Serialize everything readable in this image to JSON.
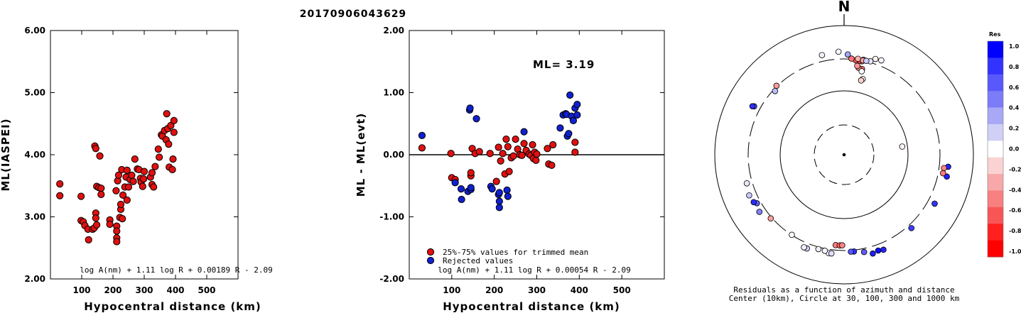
{
  "title": "20170906043629",
  "chart_data": [
    {
      "type": "scatter",
      "xlabel": "Hypocentral distance (km)",
      "ylabel": "ML(IASPEI)",
      "xlim": [
        0,
        600
      ],
      "ylim": [
        2.0,
        6.0
      ],
      "xticks": [
        "100",
        "200",
        "300",
        "400",
        "500"
      ],
      "yticks": [
        "2.00",
        "3.00",
        "4.00",
        "5.00",
        "6.00"
      ],
      "formula": "log A(nm) + 1.11 log R + 0.00189 R - 2.09",
      "color": "#e01010",
      "points": [
        [
          30,
          3.53
        ],
        [
          30,
          3.34
        ],
        [
          98,
          3.33
        ],
        [
          98,
          2.94
        ],
        [
          105,
          2.92
        ],
        [
          110,
          2.86
        ],
        [
          120,
          2.8
        ],
        [
          122,
          2.63
        ],
        [
          135,
          2.8
        ],
        [
          140,
          2.82
        ],
        [
          142,
          4.14
        ],
        [
          145,
          4.1
        ],
        [
          145,
          3.06
        ],
        [
          145,
          2.98
        ],
        [
          148,
          2.87
        ],
        [
          148,
          3.49
        ],
        [
          155,
          3.47
        ],
        [
          158,
          3.98
        ],
        [
          162,
          3.46
        ],
        [
          162,
          3.36
        ],
        [
          190,
          2.95
        ],
        [
          190,
          2.88
        ],
        [
          210,
          3.42
        ],
        [
          212,
          2.85
        ],
        [
          212,
          2.77
        ],
        [
          212,
          2.66
        ],
        [
          212,
          2.6
        ],
        [
          215,
          3.58
        ],
        [
          218,
          3.67
        ],
        [
          222,
          2.99
        ],
        [
          225,
          3.12
        ],
        [
          225,
          3.2
        ],
        [
          228,
          3.76
        ],
        [
          230,
          2.97
        ],
        [
          232,
          3.35
        ],
        [
          238,
          3.48
        ],
        [
          242,
          3.64
        ],
        [
          245,
          3.27
        ],
        [
          245,
          3.75
        ],
        [
          250,
          3.48
        ],
        [
          255,
          3.6
        ],
        [
          260,
          3.67
        ],
        [
          265,
          3.57
        ],
        [
          270,
          3.93
        ],
        [
          278,
          3.77
        ],
        [
          283,
          3.76
        ],
        [
          288,
          3.62
        ],
        [
          290,
          3.56
        ],
        [
          295,
          3.49
        ],
        [
          298,
          3.61
        ],
        [
          300,
          3.73
        ],
        [
          320,
          3.64
        ],
        [
          325,
          3.71
        ],
        [
          325,
          3.52
        ],
        [
          330,
          3.48
        ],
        [
          335,
          3.81
        ],
        [
          345,
          4.09
        ],
        [
          348,
          3.96
        ],
        [
          355,
          4.32
        ],
        [
          358,
          4.3
        ],
        [
          365,
          4.39
        ],
        [
          370,
          4.24
        ],
        [
          372,
          4.66
        ],
        [
          375,
          4.42
        ],
        [
          378,
          4.17
        ],
        [
          380,
          3.8
        ],
        [
          385,
          4.47
        ],
        [
          390,
          3.76
        ],
        [
          392,
          3.93
        ],
        [
          395,
          4.55
        ],
        [
          395,
          4.36
        ]
      ]
    },
    {
      "type": "scatter",
      "xlabel": "Hypocentral distance (km)",
      "ylabel": "ML - ML(evt)",
      "xlim": [
        0,
        600
      ],
      "ylim": [
        -2.0,
        2.0
      ],
      "xticks": [
        "100",
        "200",
        "300",
        "400",
        "500"
      ],
      "yticks": [
        "-2.00",
        "-1.00",
        "0.00",
        "1.00",
        "2.00"
      ],
      "annotation": "ML= 3.19",
      "formula": "log A(nm) + 1.11 log R + 0.00054 R - 2.09",
      "legend": [
        {
          "label": "25%-75% values for trimmed mean",
          "color": "#e01010"
        },
        {
          "label": "Rejected values",
          "color": "#1020d0"
        }
      ],
      "series": [
        {
          "name": "25%-75% values for trimmed mean",
          "color": "#e01010",
          "points": [
            [
              30,
              0.11
            ],
            [
              98,
              0.02
            ],
            [
              100,
              -0.37
            ],
            [
              108,
              -0.4
            ],
            [
              145,
              -0.34
            ],
            [
              145,
              -0.29
            ],
            [
              148,
              0.1
            ],
            [
              155,
              0.02
            ],
            [
              165,
              0.05
            ],
            [
              190,
              0.02
            ],
            [
              205,
              -0.43
            ],
            [
              210,
              0.12
            ],
            [
              215,
              -0.1
            ],
            [
              220,
              0.02
            ],
            [
              225,
              -0.31
            ],
            [
              228,
              0.25
            ],
            [
              232,
              0.13
            ],
            [
              235,
              -0.27
            ],
            [
              240,
              -0.05
            ],
            [
              245,
              -0.02
            ],
            [
              250,
              0.25
            ],
            [
              255,
              0.09
            ],
            [
              260,
              0.0
            ],
            [
              265,
              -0.01
            ],
            [
              270,
              0.18
            ],
            [
              275,
              0.07
            ],
            [
              282,
              0.01
            ],
            [
              286,
              -0.01
            ],
            [
              290,
              0.16
            ],
            [
              292,
              -0.06
            ],
            [
              295,
              0.04
            ],
            [
              298,
              -0.09
            ],
            [
              300,
              0.01
            ],
            [
              325,
              0.1
            ],
            [
              328,
              -0.15
            ],
            [
              335,
              -0.17
            ],
            [
              338,
              0.16
            ],
            [
              390,
              0.2
            ],
            [
              390,
              0.04
            ]
          ]
        },
        {
          "name": "Rejected values",
          "color": "#1020d0",
          "points": [
            [
              30,
              0.31
            ],
            [
              108,
              -0.45
            ],
            [
              122,
              -0.55
            ],
            [
              123,
              -0.72
            ],
            [
              138,
              -0.59
            ],
            [
              142,
              0.72
            ],
            [
              143,
              0.75
            ],
            [
              145,
              -0.56
            ],
            [
              145,
              -0.53
            ],
            [
              158,
              0.58
            ],
            [
              192,
              -0.51
            ],
            [
              195,
              -0.55
            ],
            [
              210,
              -0.64
            ],
            [
              212,
              -0.85
            ],
            [
              212,
              -0.75
            ],
            [
              212,
              -0.61
            ],
            [
              230,
              -0.57
            ],
            [
              232,
              -0.67
            ],
            [
              270,
              0.37
            ],
            [
              355,
              0.43
            ],
            [
              362,
              0.64
            ],
            [
              368,
              0.66
            ],
            [
              370,
              0.65
            ],
            [
              372,
              0.3
            ],
            [
              375,
              0.34
            ],
            [
              378,
              0.96
            ],
            [
              382,
              0.62
            ],
            [
              386,
              0.55
            ],
            [
              390,
              0.75
            ],
            [
              395,
              0.81
            ],
            [
              395,
              0.64
            ]
          ]
        }
      ]
    }
  ],
  "polar": {
    "north_label": "N",
    "caption_line1": "Residuals as a function of azimuth and distance",
    "caption_line2": "Center (10km), Circle at 30, 100, 300 and 1000 km",
    "colorbar": {
      "title": "Res",
      "ticks": [
        "1.0",
        "0.8",
        "0.6",
        "0.4",
        "0.2",
        "0.0",
        "-0.2",
        "-0.4",
        "-0.6",
        "-0.8",
        "-1.0"
      ],
      "colors": [
        "#0000ff",
        "#3333ff",
        "#5858fb",
        "#7c7cf8",
        "#a8a8f7",
        "#d0d0f7",
        "#ffffff",
        "#fbd2d2",
        "#f8a8a8",
        "#f88080",
        "#f85656",
        "#ff2020",
        "#ff0000"
      ]
    },
    "stations": [
      {
        "az": 82.0,
        "dist": 83.1,
        "res": -0.05
      },
      {
        "az": 315.6,
        "dist": 307.8,
        "res": -0.39
      },
      {
        "az": 312.7,
        "dist": 280.7,
        "res": 0.26
      },
      {
        "az": 298.3,
        "dist": 376.1,
        "res": 0.67
      },
      {
        "az": 297.9,
        "dist": 396.9,
        "res": 0.82
      },
      {
        "az": 10.8,
        "dist": 292.7,
        "res": -0.62
      },
      {
        "az": 9.4,
        "dist": 295.7,
        "res": -0.71
      },
      {
        "az": 7.0,
        "dist": 293.6,
        "res": -0.66
      },
      {
        "az": 11.5,
        "dist": 312.4,
        "res": -0.57
      },
      {
        "az": 11.3,
        "dist": 304.3,
        "res": -0.35
      },
      {
        "az": 8.2,
        "dist": 312.9,
        "res": -0.31
      },
      {
        "az": 4.4,
        "dist": 306.2,
        "res": -0.54
      },
      {
        "az": 15.7,
        "dist": 313.7,
        "res": 0.1
      },
      {
        "az": 13.3,
        "dist": 307.4,
        "res": 0.2
      },
      {
        "az": 18.1,
        "dist": 358.6,
        "res": -0.05
      },
      {
        "az": 11.8,
        "dist": 226.4,
        "res": -0.6
      },
      {
        "az": 9.4,
        "dist": 230.5,
        "res": -0.48
      },
      {
        "az": 8.4,
        "dist": 244.5,
        "res": -0.4
      },
      {
        "az": 11.9,
        "dist": 208.7,
        "res": -0.02
      },
      {
        "az": 13.8,
        "dist": 162.5,
        "res": -0.1
      },
      {
        "az": 12.9,
        "dist": 152.8,
        "res": -0.19
      },
      {
        "az": 21.5,
        "dist": 367.4,
        "res": 0.05
      },
      {
        "az": 2.1,
        "dist": 353.6,
        "res": 0.36
      },
      {
        "az": 356.9,
        "dist": 391.0,
        "res": 0.04
      },
      {
        "az": 347.5,
        "dist": 375.5,
        "res": 0.05
      },
      {
        "az": 102.0,
        "dist": 416.8,
        "res": 0.88
      },
      {
        "az": 96.6,
        "dist": 412.6,
        "res": 0.86
      },
      {
        "az": 97.6,
        "dist": 357.4,
        "res": -0.49
      },
      {
        "az": 100.6,
        "dist": 356.4,
        "res": -0.52
      },
      {
        "az": 118.4,
        "dist": 386.6,
        "res": 0.8
      },
      {
        "az": 137.5,
        "dist": 342.9,
        "res": 0.76
      },
      {
        "az": 157.5,
        "dist": 386.4,
        "res": 0.86
      },
      {
        "az": 160.4,
        "dist": 371.0,
        "res": 0.95
      },
      {
        "az": 163.8,
        "dist": 387.1,
        "res": 0.88
      },
      {
        "az": 168.4,
        "dist": 340.3,
        "res": 0.63
      },
      {
        "az": 174.2,
        "dist": 315.6,
        "res": 0.8
      },
      {
        "az": 176.0,
        "dist": 315.4,
        "res": 0.66
      },
      {
        "az": 185.3,
        "dist": 252.1,
        "res": -0.5
      },
      {
        "az": 182.8,
        "dist": 252.4,
        "res": -0.61
      },
      {
        "az": 181.2,
        "dist": 250.6,
        "res": -0.49
      },
      {
        "az": 188.9,
        "dist": 342.8,
        "res": 0.04
      },
      {
        "az": 187.3,
        "dist": 342.4,
        "res": 0.13
      },
      {
        "az": 191.3,
        "dist": 324.0,
        "res": 0.04
      },
      {
        "az": 195.2,
        "dist": 321.9,
        "res": 0.05
      },
      {
        "az": 201.6,
        "dist": 359.3,
        "res": 0.19
      },
      {
        "az": 203.4,
        "dist": 360.0,
        "res": 0.06
      },
      {
        "az": 213.1,
        "dist": 297.8,
        "res": 0.02
      },
      {
        "az": 229.0,
        "dist": 313.8,
        "res": -0.39
      },
      {
        "az": 236.0,
        "dist": 376.0,
        "res": 0.49
      },
      {
        "az": 240.9,
        "dist": 344.7,
        "res": 0.64
      },
      {
        "az": 242.3,
        "dist": 374.7,
        "res": 0.83
      },
      {
        "az": 246.8,
        "dist": 391.0,
        "res": 0.22
      },
      {
        "az": 253.6,
        "dist": 365.2,
        "res": 0.09
      }
    ]
  }
}
